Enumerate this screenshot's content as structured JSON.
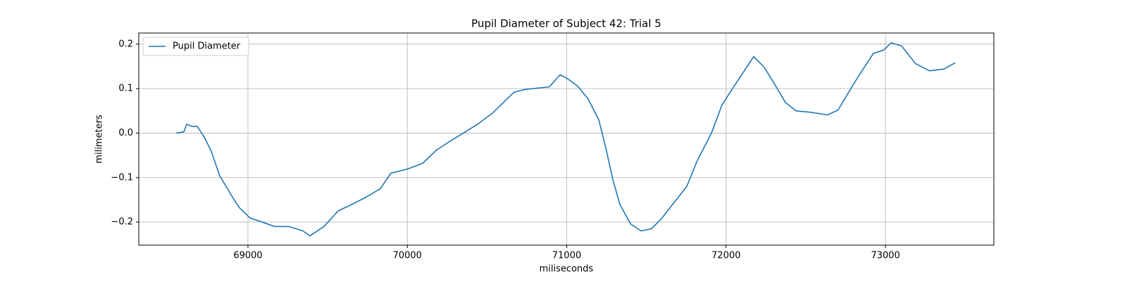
{
  "chart_data": {
    "type": "line",
    "title": "Pupil Diameter of Subject 42: Trial 5",
    "xlabel": "miliseconds",
    "ylabel": "milimeters",
    "x": [
      68549,
      68598,
      68616,
      68651,
      68682,
      68726,
      68770,
      68823,
      68903,
      68947,
      69013,
      69080,
      69168,
      69256,
      69345,
      69389,
      69477,
      69566,
      69654,
      69742,
      69831,
      69897,
      69999,
      70096,
      70184,
      70273,
      70361,
      70449,
      70538,
      70626,
      70670,
      70737,
      70891,
      70958,
      71002,
      71068,
      71134,
      71201,
      71245,
      71289,
      71333,
      71400,
      71466,
      71532,
      71598,
      71665,
      71753,
      71819,
      71908,
      71974,
      72040,
      72129,
      72173,
      72239,
      72306,
      72372,
      72438,
      72526,
      72637,
      72703,
      72769,
      72836,
      72924,
      72990,
      73035,
      73101,
      73189,
      73277,
      73366,
      73437
    ],
    "series": [
      {
        "name": "Pupil Diameter",
        "color": "#1f77b4",
        "values": [
          0,
          0.003,
          0.02,
          0.015,
          0.015,
          -0.009,
          -0.041,
          -0.096,
          -0.144,
          -0.168,
          -0.191,
          -0.199,
          -0.21,
          -0.21,
          -0.22,
          -0.231,
          -0.21,
          -0.175,
          -0.16,
          -0.144,
          -0.125,
          -0.09,
          -0.081,
          -0.068,
          -0.038,
          -0.017,
          0.002,
          0.022,
          0.046,
          0.077,
          0.092,
          0.098,
          0.104,
          0.131,
          0.123,
          0.106,
          0.077,
          0.03,
          -0.033,
          -0.104,
          -0.16,
          -0.204,
          -0.22,
          -0.215,
          -0.191,
          -0.16,
          -0.12,
          -0.062,
          0,
          0.063,
          0.1,
          0.148,
          0.172,
          0.148,
          0.109,
          0.069,
          0.05,
          0.047,
          0.041,
          0.052,
          0.092,
          0.131,
          0.179,
          0.187,
          0.203,
          0.196,
          0.156,
          0.14,
          0.144,
          0.158
        ]
      }
    ],
    "xlim": [
      68315,
      73680
    ],
    "ylim": [
      -0.252,
      0.225
    ],
    "xticks": [
      69000,
      70000,
      71000,
      72000,
      73000
    ],
    "yticks": [
      {
        "value": -0.2,
        "label": "−0.2"
      },
      {
        "value": -0.1,
        "label": "−0.1"
      },
      {
        "value": 0,
        "label": "0.0"
      },
      0.1,
      0.2
    ],
    "grid": true,
    "legend": "upper left"
  }
}
